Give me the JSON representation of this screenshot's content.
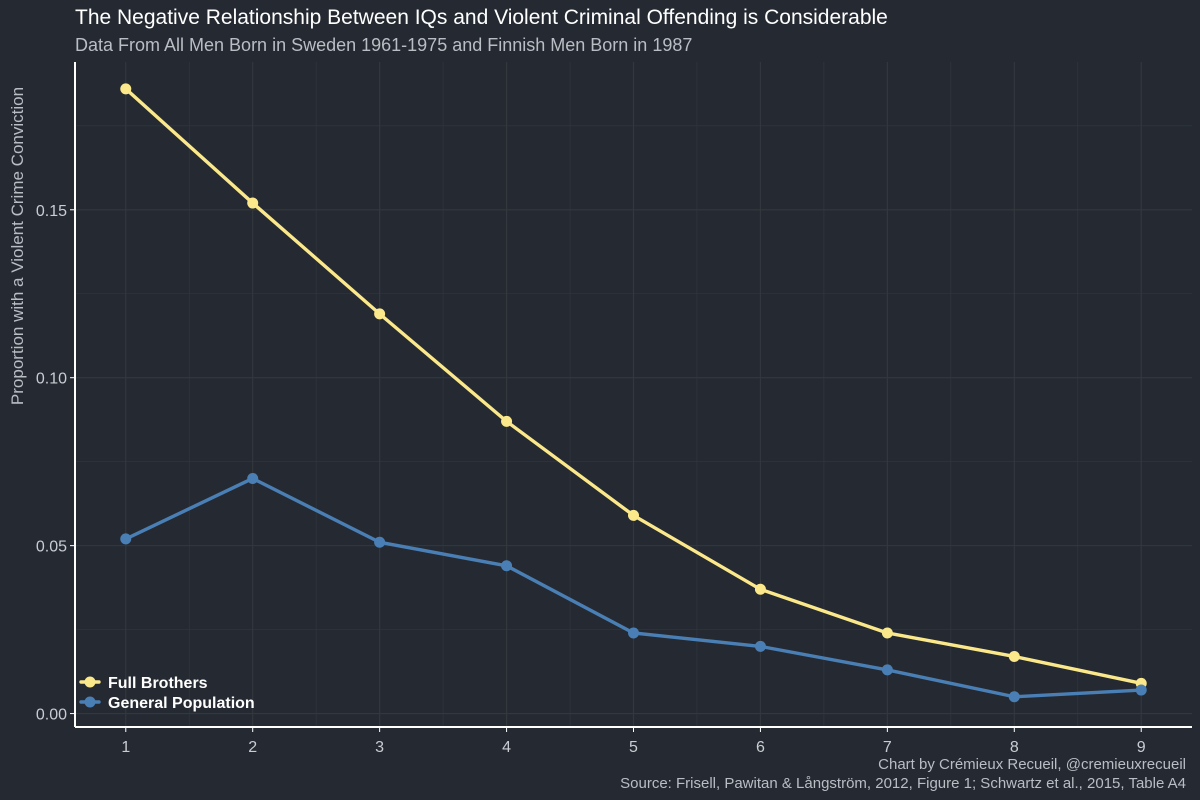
{
  "chart_data": {
    "type": "line",
    "title": "The Negative Relationship Between IQs and Violent Criminal Offending is Considerable",
    "subtitle": "Data From All Men Born in Sweden 1961-1975 and Finnish Men Born in 1987",
    "xlabel": "",
    "ylabel": "Proportion with a Violent Crime Conviction",
    "x": [
      1,
      2,
      3,
      4,
      5,
      6,
      7,
      8,
      9
    ],
    "x_tick_labels": [
      "1",
      "2",
      "3",
      "4",
      "5",
      "6",
      "7",
      "8",
      "9"
    ],
    "xlim": [
      0.6,
      9.4
    ],
    "y_ticks": [
      0.0,
      0.05,
      0.1,
      0.15
    ],
    "y_tick_labels": [
      "0.00",
      "0.05",
      "0.10",
      "0.15"
    ],
    "ylim": [
      -0.004,
      0.194
    ],
    "grid": true,
    "legend_position": "bottom-left",
    "series": [
      {
        "name": "Full Brothers",
        "color": "#fbe88a",
        "values": [
          0.186,
          0.152,
          0.119,
          0.087,
          0.059,
          0.037,
          0.024,
          0.017,
          0.009
        ]
      },
      {
        "name": "General Population",
        "color": "#4a7fb5",
        "values": [
          0.052,
          0.07,
          0.051,
          0.044,
          0.024,
          0.02,
          0.013,
          0.005,
          0.007
        ]
      }
    ]
  },
  "caption": {
    "credit": "Chart by Crémieux Recueil, @cremieuxrecueil",
    "source": "Source: Frisell, Pawitan & Långström, 2012, Figure 1; Schwartz et al., 2015, Table A4"
  },
  "colors": {
    "background": "#252a32",
    "grid": "#33383f",
    "axis": "#ffffff"
  }
}
